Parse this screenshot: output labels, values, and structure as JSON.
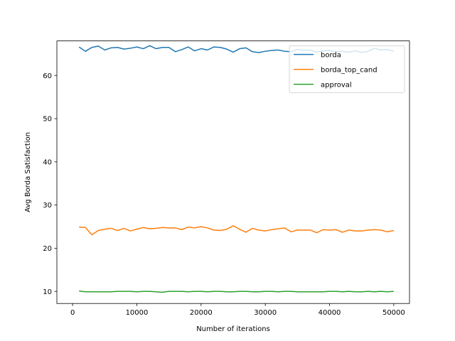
{
  "chart_data": {
    "type": "line",
    "title": "",
    "xlabel": "Number of iterations",
    "ylabel": "Avg Borda Satisfaction",
    "xlim": [
      -2450,
      52450
    ],
    "ylim": [
      7.2,
      68.0
    ],
    "xticks": [
      0,
      10000,
      20000,
      30000,
      40000,
      50000
    ],
    "xtick_labels": [
      "0",
      "10000",
      "20000",
      "30000",
      "40000",
      "50000"
    ],
    "yticks": [
      10,
      20,
      30,
      40,
      50,
      60
    ],
    "ytick_labels": [
      "10",
      "20",
      "30",
      "40",
      "50",
      "60"
    ],
    "grid": false,
    "legend_position": "upper right",
    "x": [
      1000,
      2000,
      3000,
      4000,
      5000,
      6000,
      7000,
      8000,
      9000,
      10000,
      11000,
      12000,
      13000,
      14000,
      15000,
      16000,
      17000,
      18000,
      19000,
      20000,
      21000,
      22000,
      23000,
      24000,
      25000,
      26000,
      27000,
      28000,
      29000,
      30000,
      31000,
      32000,
      33000,
      34000,
      35000,
      36000,
      37000,
      38000,
      39000,
      40000,
      41000,
      42000,
      43000,
      44000,
      45000,
      46000,
      47000,
      48000,
      49000,
      50000
    ],
    "series": [
      {
        "name": "borda",
        "color": "#1f77b4",
        "values": [
          66.6,
          65.6,
          66.5,
          66.8,
          65.9,
          66.4,
          66.5,
          66.1,
          66.3,
          66.6,
          66.2,
          66.9,
          66.2,
          66.5,
          66.5,
          65.5,
          66.0,
          66.6,
          65.7,
          66.2,
          65.9,
          66.6,
          66.5,
          66.1,
          65.4,
          66.2,
          66.4,
          65.5,
          65.3,
          65.6,
          65.8,
          65.9,
          65.6,
          65.5,
          66.0,
          65.8,
          65.9,
          65.4,
          65.7,
          65.8,
          65.5,
          65.6,
          65.4,
          65.7,
          65.3,
          65.6,
          66.3,
          65.9,
          66.0,
          65.6
        ]
      },
      {
        "name": "borda_top_cand",
        "color": "#ff7f0e",
        "values": [
          24.9,
          24.8,
          23.1,
          24.1,
          24.4,
          24.6,
          24.1,
          24.6,
          24.0,
          24.4,
          24.8,
          24.5,
          24.6,
          24.8,
          24.7,
          24.7,
          24.3,
          24.9,
          24.7,
          25.0,
          24.7,
          24.2,
          24.1,
          24.4,
          25.2,
          24.4,
          23.7,
          24.6,
          24.2,
          24.0,
          24.3,
          24.5,
          24.7,
          23.8,
          24.2,
          24.2,
          24.2,
          23.6,
          24.3,
          24.2,
          24.3,
          23.7,
          24.2,
          24.0,
          24.0,
          24.2,
          24.3,
          24.2,
          23.8,
          24.1
        ]
      },
      {
        "name": "approval",
        "color": "#2ca02c",
        "values": [
          10.1,
          9.9,
          9.9,
          9.9,
          9.9,
          9.9,
          10.0,
          10.0,
          10.0,
          9.9,
          10.0,
          10.0,
          9.9,
          9.8,
          10.0,
          10.0,
          10.0,
          9.9,
          10.0,
          10.0,
          9.9,
          10.0,
          10.0,
          9.9,
          9.9,
          10.0,
          10.0,
          9.9,
          9.9,
          10.0,
          10.0,
          9.9,
          10.0,
          10.0,
          9.9,
          9.9,
          9.9,
          9.9,
          9.9,
          10.0,
          10.0,
          9.9,
          10.0,
          9.9,
          9.9,
          10.0,
          9.9,
          10.0,
          9.9,
          10.0
        ]
      }
    ]
  }
}
